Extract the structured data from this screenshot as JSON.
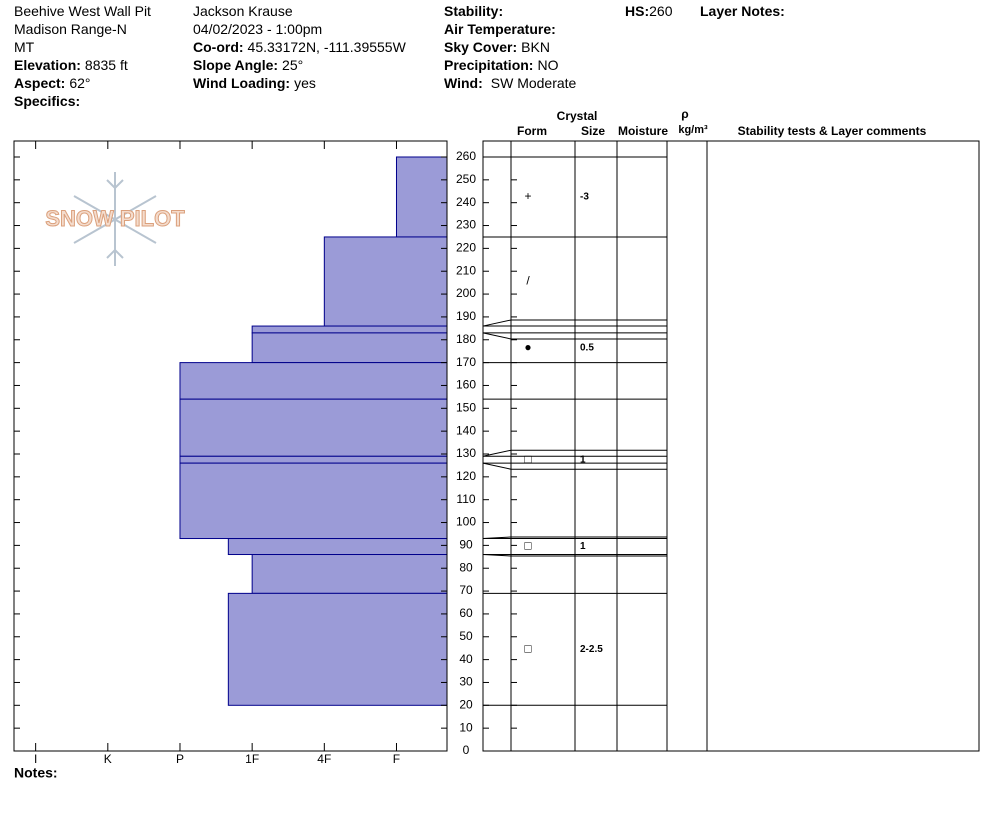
{
  "header": {
    "pit_name": "Beehive West Wall Pit",
    "range": "Madison Range-N",
    "state": "MT",
    "elevation": {
      "label": "Elevation:",
      "value": "8835 ft"
    },
    "aspect": {
      "label": "Aspect:",
      "value": "62°"
    },
    "specifics": {
      "label": "Specifics:"
    },
    "observer": "Jackson Krause",
    "datetime": "04/02/2023 - 1:00pm",
    "coord": {
      "label": "Co-ord:",
      "value": "45.33172N, -111.39555W"
    },
    "slope": {
      "label": "Slope Angle:",
      "value": "25°"
    },
    "wind_loading": {
      "label": "Wind Loading:",
      "value": "yes"
    },
    "stability": {
      "label": "Stability:"
    },
    "air_temp": {
      "label": "Air Temperature:"
    },
    "sky": {
      "label": "Sky Cover:",
      "value": "BKN"
    },
    "precip": {
      "label": "Precipitation:",
      "value": "NO"
    },
    "wind": {
      "label": "Wind:",
      "value": "SW Moderate"
    },
    "hs": {
      "label": "HS:",
      "value": 260
    },
    "layer_notes": {
      "label": "Layer Notes:"
    }
  },
  "logo": "SNOW PILOT",
  "notes": {
    "label": "Notes:"
  },
  "chart_data": {
    "type": "snowpit",
    "columns": {
      "crystal": "Crystal",
      "form": "Form",
      "size": "Size",
      "moisture": "Moisture",
      "rho": "ρ",
      "density": "kg/m³",
      "comments": "Stability tests & Layer comments"
    },
    "color": "#9b9bd7",
    "edge_color": "#00008b",
    "xlim": [
      6.3,
      0.3
    ],
    "xticks": [
      {
        "value": 6,
        "label": "I"
      },
      {
        "value": 5,
        "label": "K"
      },
      {
        "value": 4,
        "label": "P"
      },
      {
        "value": 3,
        "label": "1F"
      },
      {
        "value": 2,
        "label": "4F"
      },
      {
        "value": 1,
        "label": "F"
      }
    ],
    "ylim": [
      0,
      267
    ],
    "yticks": [
      0,
      10,
      20,
      30,
      40,
      50,
      60,
      70,
      80,
      90,
      100,
      110,
      120,
      130,
      140,
      150,
      160,
      170,
      180,
      190,
      200,
      210,
      220,
      230,
      240,
      250,
      260
    ],
    "layers": [
      {
        "top": 260,
        "bottom": 225,
        "hardness": 1,
        "form": "+",
        "size": "-3"
      },
      {
        "top": 225,
        "bottom": 186,
        "hardness": 2,
        "form": "/",
        "size": null
      },
      {
        "top": 186,
        "bottom": 183,
        "hardness": 3,
        "form": null,
        "size": null
      },
      {
        "top": 183,
        "bottom": 170,
        "hardness": 3,
        "form": "●",
        "size": "0.5"
      },
      {
        "top": 170,
        "bottom": 154,
        "hardness": 4,
        "form": null,
        "size": null
      },
      {
        "top": 154,
        "bottom": 129,
        "hardness": 4,
        "form": null,
        "size": null
      },
      {
        "top": 129,
        "bottom": 126,
        "hardness": 4,
        "form": "□",
        "size": "1"
      },
      {
        "top": 126,
        "bottom": 93,
        "hardness": 4,
        "form": null,
        "size": null
      },
      {
        "top": 93,
        "bottom": 86,
        "hardness": 3.33,
        "form": "□",
        "size": "1"
      },
      {
        "top": 86,
        "bottom": 69,
        "hardness": 3,
        "form": null,
        "size": null
      },
      {
        "top": 69,
        "bottom": 20,
        "hardness": 3.33,
        "form": "□",
        "size": "2-2.5"
      }
    ]
  }
}
